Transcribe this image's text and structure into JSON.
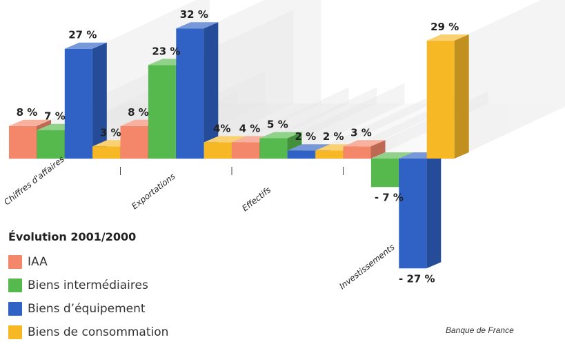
{
  "chart_data": {
    "type": "bar",
    "title": "",
    "categories": [
      "Chiffres d'affaires",
      "Exportations",
      "Effectifs",
      "Investissements"
    ],
    "series": [
      {
        "name": "IAA",
        "color": "#f4876a",
        "values": [
          8,
          8,
          4,
          3
        ]
      },
      {
        "name": "Biens intermédiaires",
        "color": "#55b94d",
        "values": [
          7,
          23,
          5,
          -7
        ]
      },
      {
        "name": "Biens d’équipement",
        "color": "#2f62c4",
        "values": [
          27,
          32,
          2,
          -27
        ]
      },
      {
        "name": "Biens de consommation",
        "color": "#f7b826",
        "values": [
          3,
          4,
          2,
          29
        ]
      }
    ],
    "value_labels": [
      [
        "8 %",
        "8 %",
        "4 %",
        "3 %"
      ],
      [
        "7 %",
        "23 %",
        "5 %",
        "- 7 %"
      ],
      [
        "27 %",
        "32 %",
        "2 %",
        "- 27 %"
      ],
      [
        "3 %",
        "4%",
        "2 %",
        "29 %"
      ]
    ],
    "unit": "%",
    "style": "3d-bars",
    "legend_position": "bottom-left",
    "grid": false
  },
  "legend": {
    "title": "Évolution 2001/2000",
    "items": [
      {
        "label": "IAA",
        "color": "#f4876a"
      },
      {
        "label": "Biens intermédiaires",
        "color": "#55b94d"
      },
      {
        "label": "Biens d’équipement",
        "color": "#2f62c4"
      },
      {
        "label": "Biens de consommation",
        "color": "#f7b826"
      }
    ]
  },
  "source": "Banque de France"
}
